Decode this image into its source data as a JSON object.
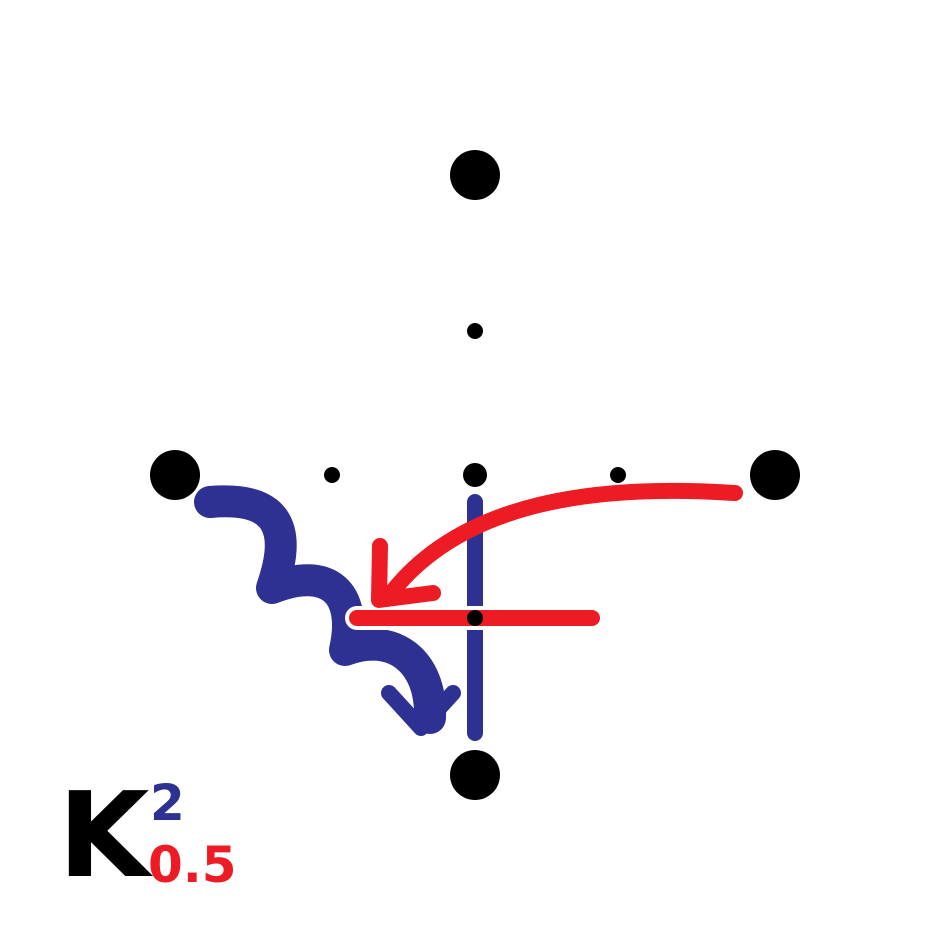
{
  "colors": {
    "ink": "#000000",
    "blue": "#2e3192",
    "red": "#ed1c24",
    "background": "#ffffff"
  },
  "label": {
    "letter": "K",
    "blue_factor": "2",
    "red_factor": "0.5"
  }
}
